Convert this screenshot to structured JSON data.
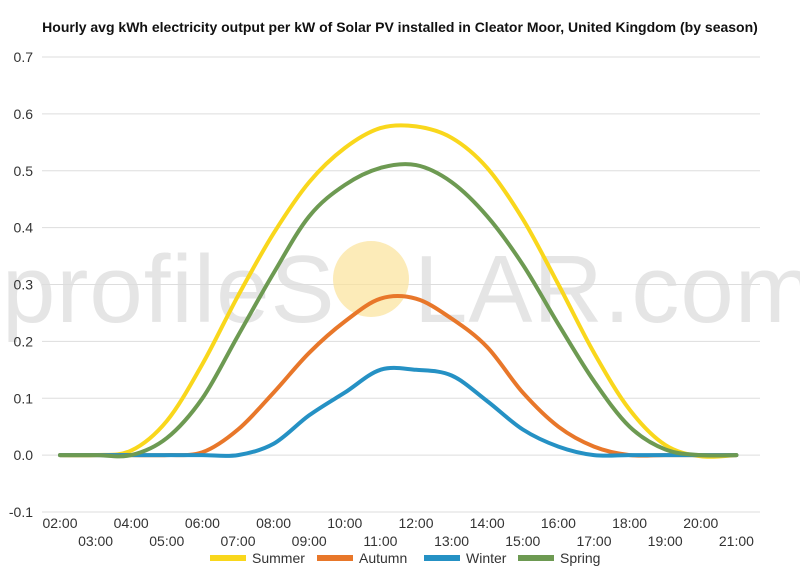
{
  "title": "Hourly avg kWh electricity output per kW of Solar PV installed in Cleator Moor, United Kingdom (by season)",
  "watermark": {
    "text_left": "profileS",
    "text_right": "LAR.com",
    "sun_color": "#fbe39a"
  },
  "chart_data": {
    "type": "line",
    "title": "Hourly avg kWh electricity output per kW of Solar PV installed in Cleator Moor, United Kingdom (by season)",
    "xlabel": "",
    "ylabel": "",
    "x": [
      "02:00",
      "03:00",
      "04:00",
      "05:00",
      "06:00",
      "07:00",
      "08:00",
      "09:00",
      "10:00",
      "11:00",
      "12:00",
      "13:00",
      "14:00",
      "15:00",
      "16:00",
      "17:00",
      "18:00",
      "19:00",
      "20:00",
      "21:00"
    ],
    "x_tick_labels_upper": [
      "02:00",
      "04:00",
      "06:00",
      "08:00",
      "10:00",
      "12:00",
      "14:00",
      "16:00",
      "18:00",
      "20:00"
    ],
    "x_tick_labels_lower": [
      "03:00",
      "05:00",
      "07:00",
      "09:00",
      "11:00",
      "13:00",
      "15:00",
      "17:00",
      "19:00",
      "21:00"
    ],
    "ylim": [
      -0.1,
      0.7
    ],
    "y_ticks": [
      -0.1,
      0.0,
      0.1,
      0.2,
      0.3,
      0.4,
      0.5,
      0.6,
      0.7
    ],
    "y_tick_labels": [
      "-0.1",
      "0.0",
      "0.1",
      "0.2",
      "0.3",
      "0.4",
      "0.5",
      "0.6",
      "0.7"
    ],
    "grid": true,
    "legend_position": "bottom",
    "series": [
      {
        "name": "Summer",
        "color": "#f9d71c",
        "values": [
          0,
          0,
          0.008,
          0.06,
          0.16,
          0.28,
          0.39,
          0.48,
          0.54,
          0.575,
          0.578,
          0.558,
          0.505,
          0.415,
          0.3,
          0.18,
          0.08,
          0.018,
          -0.002,
          0
        ]
      },
      {
        "name": "Autumn",
        "color": "#e8772a",
        "values": [
          0,
          0,
          0,
          0,
          0.005,
          0.045,
          0.11,
          0.18,
          0.235,
          0.275,
          0.275,
          0.24,
          0.19,
          0.11,
          0.05,
          0.015,
          0,
          0,
          0,
          0
        ]
      },
      {
        "name": "Winter",
        "color": "#2591c4",
        "values": [
          0,
          0,
          0,
          0,
          0,
          0,
          0.02,
          0.07,
          0.11,
          0.15,
          0.15,
          0.14,
          0.095,
          0.045,
          0.015,
          0,
          0,
          0,
          0,
          0
        ]
      },
      {
        "name": "Spring",
        "color": "#6d9a52",
        "values": [
          0,
          0,
          0,
          0.03,
          0.1,
          0.21,
          0.32,
          0.42,
          0.475,
          0.505,
          0.51,
          0.48,
          0.42,
          0.335,
          0.23,
          0.13,
          0.05,
          0.01,
          0,
          0
        ]
      }
    ]
  }
}
